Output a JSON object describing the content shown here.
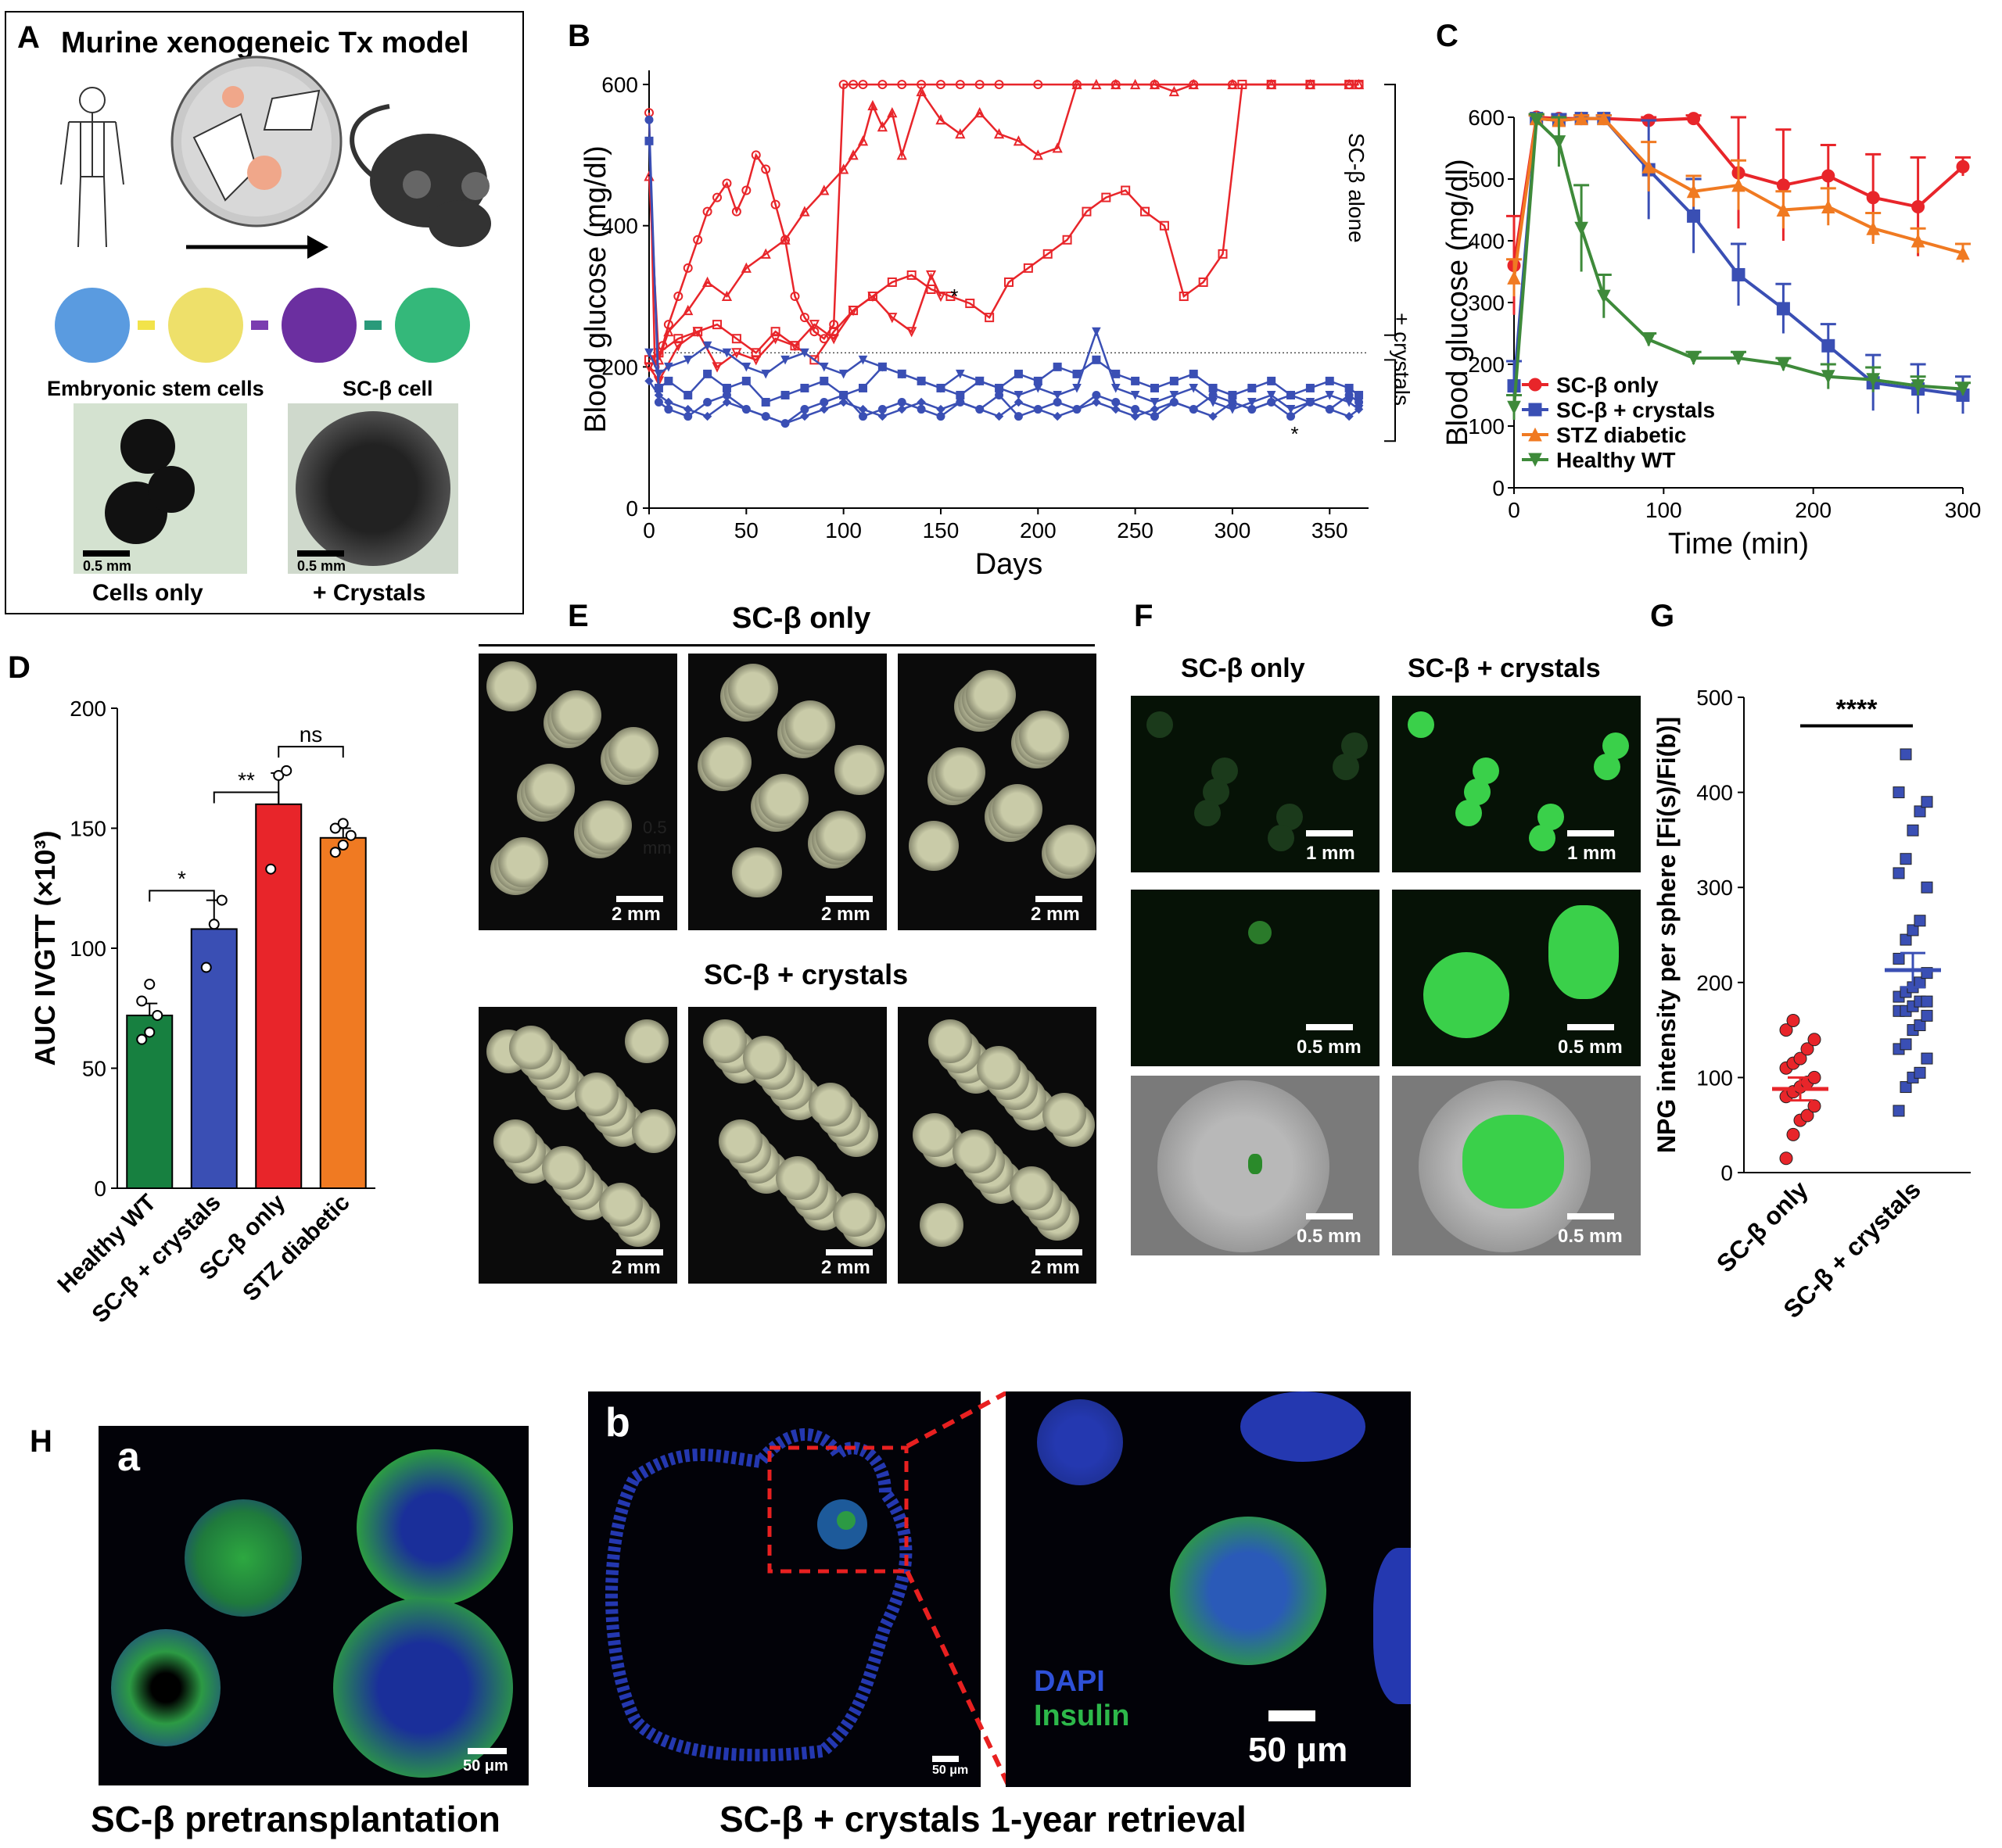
{
  "panels": {
    "A": {
      "letter": "A",
      "title": "Murine xenogeneic Tx model",
      "labels": {
        "stem": "Embryonic stem cells",
        "beta": "SC-β cell",
        "scale1": "0.5 mm",
        "scale2": "0.5 mm",
        "cells_only": "Cells only",
        "crystals": "+ Crystals"
      }
    },
    "B": {
      "letter": "B",
      "bracket_top": "SC-β alone",
      "bracket_bottom": "+ crystals",
      "asterisk": "*"
    },
    "C": {
      "letter": "C"
    },
    "D": {
      "letter": "D"
    },
    "E": {
      "letter": "E",
      "title_top": "SC-β only",
      "title_bottom": "SC-β + crystals",
      "scale": "2 mm",
      "overlay_text": "0.5 mm"
    },
    "F": {
      "letter": "F",
      "col1": "SC-β only",
      "col2": "SC-β + crystals",
      "scale_1mm": "1 mm",
      "scale_05mm": "0.5 mm"
    },
    "G": {
      "letter": "G",
      "sig": "****"
    },
    "H": {
      "letter": "H",
      "sub_a": "a",
      "sub_b": "b",
      "caption_a": "SC-β pretransplantation",
      "caption_b": "SC-β + crystals 1-year retrieval",
      "scale_small": "50 μm",
      "scale_big": "50 μm",
      "dapi": "DAPI",
      "insulin": "Insulin"
    }
  },
  "colors": {
    "red": "#e8252a",
    "blue": "#3a4fb4",
    "orange": "#f07a22",
    "green": "#3e8a3a",
    "dgreen": "#178040"
  },
  "chart_data": [
    {
      "panel": "B",
      "type": "line",
      "xlabel": "Days",
      "ylabel": "Blood glucose (mg/dl)",
      "xlim": [
        0,
        370
      ],
      "ylim": [
        0,
        620
      ],
      "xticks": [
        0,
        50,
        100,
        150,
        200,
        250,
        300,
        350
      ],
      "yticks": [
        0,
        200,
        400,
        600
      ],
      "threshold": 220,
      "series": [
        {
          "group": "red",
          "marker": "circle",
          "x": [
            0,
            3,
            7,
            10,
            15,
            20,
            25,
            30,
            35,
            40,
            45,
            50,
            55,
            60,
            65,
            70,
            75,
            80,
            85,
            90,
            95,
            100,
            105,
            110,
            120,
            130,
            140,
            150,
            160,
            170,
            180,
            200,
            220,
            240,
            260,
            280,
            300,
            320,
            340,
            360,
            365
          ],
          "y": [
            560,
            200,
            230,
            260,
            300,
            340,
            380,
            420,
            440,
            460,
            420,
            450,
            500,
            480,
            430,
            380,
            300,
            270,
            250,
            240,
            260,
            600,
            600,
            600,
            600,
            600,
            600,
            600,
            600,
            600,
            600,
            600,
            600,
            600,
            600,
            600,
            600,
            600,
            600,
            600,
            600
          ]
        },
        {
          "group": "red",
          "marker": "triangle",
          "x": [
            0,
            5,
            10,
            20,
            30,
            40,
            50,
            60,
            70,
            80,
            90,
            100,
            105,
            110,
            115,
            120,
            125,
            130,
            140,
            150,
            160,
            170,
            180,
            190,
            200,
            210,
            220,
            230,
            240,
            250,
            260,
            270,
            280,
            300,
            320,
            340,
            360,
            365
          ],
          "y": [
            470,
            210,
            250,
            280,
            320,
            300,
            340,
            360,
            380,
            420,
            450,
            480,
            500,
            520,
            570,
            540,
            560,
            500,
            590,
            550,
            530,
            560,
            530,
            520,
            500,
            510,
            600,
            600,
            600,
            600,
            600,
            590,
            600,
            600,
            600,
            600,
            600,
            600
          ]
        },
        {
          "group": "red",
          "marker": "square",
          "x": [
            0,
            5,
            15,
            25,
            35,
            45,
            55,
            65,
            75,
            85,
            95,
            105,
            115,
            125,
            135,
            145,
            155,
            165,
            175,
            185,
            195,
            205,
            215,
            225,
            235,
            245,
            255,
            265,
            275,
            285,
            295,
            305,
            320,
            340,
            360,
            365
          ],
          "y": [
            210,
            220,
            240,
            250,
            260,
            240,
            220,
            250,
            230,
            210,
            250,
            280,
            300,
            320,
            330,
            310,
            300,
            290,
            270,
            320,
            340,
            360,
            380,
            420,
            440,
            450,
            420,
            400,
            300,
            320,
            360,
            600,
            600,
            600,
            600,
            600
          ]
        },
        {
          "group": "red",
          "marker": "invtriangle",
          "x": [
            0,
            5,
            15,
            25,
            35,
            45,
            55,
            65,
            75,
            85,
            95,
            105,
            115,
            125,
            135,
            145,
            150
          ],
          "y": [
            200,
            180,
            230,
            250,
            200,
            220,
            210,
            240,
            230,
            260,
            240,
            280,
            300,
            270,
            250,
            330,
            300
          ]
        },
        {
          "group": "blue",
          "marker": "circle",
          "x": [
            0,
            5,
            10,
            20,
            30,
            40,
            50,
            60,
            70,
            80,
            90,
            100,
            110,
            120,
            130,
            140,
            150,
            160,
            170,
            180,
            190,
            200,
            210,
            220,
            230,
            240,
            250,
            260,
            270,
            280,
            290,
            300,
            310,
            320,
            330,
            340,
            350,
            360,
            365
          ],
          "y": [
            550,
            150,
            140,
            130,
            150,
            160,
            140,
            130,
            120,
            140,
            150,
            160,
            130,
            140,
            150,
            140,
            130,
            150,
            140,
            160,
            130,
            140,
            150,
            140,
            160,
            150,
            140,
            130,
            150,
            140,
            160,
            150,
            140,
            150,
            130,
            150,
            140,
            160,
            150
          ]
        },
        {
          "group": "blue",
          "marker": "square",
          "x": [
            0,
            5,
            10,
            20,
            30,
            40,
            50,
            60,
            70,
            80,
            90,
            100,
            110,
            120,
            130,
            140,
            150,
            160,
            170,
            180,
            190,
            200,
            210,
            220,
            230,
            240,
            250,
            260,
            270,
            280,
            290,
            300,
            310,
            320,
            330,
            340,
            350,
            360,
            365
          ],
          "y": [
            520,
            170,
            180,
            160,
            190,
            170,
            180,
            150,
            160,
            170,
            180,
            160,
            170,
            200,
            190,
            180,
            170,
            160,
            180,
            170,
            190,
            180,
            200,
            190,
            210,
            190,
            180,
            170,
            180,
            190,
            170,
            160,
            170,
            180,
            160,
            170,
            180,
            170,
            160
          ]
        },
        {
          "group": "blue",
          "marker": "invtriangle",
          "x": [
            0,
            5,
            10,
            20,
            30,
            40,
            50,
            60,
            70,
            80,
            90,
            100,
            110,
            120,
            130,
            140,
            150,
            160,
            170,
            180,
            190,
            200,
            210,
            220,
            230,
            240,
            250,
            260,
            270,
            280,
            290,
            300,
            310,
            320,
            330,
            340,
            350,
            360,
            365
          ],
          "y": [
            220,
            190,
            200,
            210,
            230,
            220,
            200,
            190,
            210,
            220,
            200,
            190,
            210,
            200,
            190,
            180,
            170,
            190,
            180,
            170,
            160,
            170,
            160,
            170,
            250,
            170,
            160,
            150,
            160,
            170,
            150,
            140,
            150,
            160,
            140,
            150,
            160,
            150,
            140
          ]
        },
        {
          "group": "blue",
          "marker": "diamond",
          "x": [
            0,
            5,
            10,
            20,
            30,
            40,
            50,
            60,
            70,
            80,
            90,
            100,
            110,
            120,
            130,
            140,
            150,
            160,
            170,
            180,
            190,
            200,
            210,
            220,
            230,
            240,
            250,
            260,
            270,
            280,
            290,
            300,
            310,
            320,
            330,
            340,
            350,
            360,
            365
          ],
          "y": [
            180,
            160,
            150,
            140,
            130,
            150,
            140,
            130,
            120,
            130,
            140,
            150,
            140,
            130,
            140,
            150,
            140,
            150,
            140,
            130,
            150,
            140,
            130,
            140,
            150,
            140,
            130,
            140,
            150,
            140,
            130,
            150,
            140,
            150,
            160,
            150,
            140,
            130,
            140
          ]
        }
      ]
    },
    {
      "panel": "C",
      "type": "line",
      "xlabel": "Time (min)",
      "ylabel": "Blood glucose (mg/dl)",
      "xlim": [
        0,
        300
      ],
      "ylim": [
        0,
        600
      ],
      "xticks": [
        0,
        100,
        200,
        300
      ],
      "yticks": [
        0,
        100,
        200,
        300,
        400,
        500,
        600
      ],
      "x": [
        0,
        15,
        30,
        45,
        60,
        90,
        120,
        150,
        180,
        210,
        240,
        270,
        300
      ],
      "series": [
        {
          "name": "SC-β only",
          "marker": "circle",
          "y": [
            360,
            600,
            598,
            598,
            598,
            595,
            598,
            510,
            490,
            505,
            470,
            455,
            520
          ],
          "err": [
            80,
            5,
            5,
            5,
            5,
            5,
            5,
            90,
            90,
            50,
            70,
            80,
            15
          ]
        },
        {
          "name": "SC-β + crystals",
          "marker": "square",
          "y": [
            165,
            598,
            595,
            598,
            598,
            515,
            440,
            345,
            290,
            230,
            170,
            160,
            150
          ],
          "err": [
            40,
            5,
            10,
            5,
            5,
            80,
            60,
            50,
            40,
            35,
            45,
            40,
            30
          ]
        },
        {
          "name": "STZ diabetic",
          "marker": "triangle",
          "y": [
            340,
            598,
            595,
            598,
            598,
            520,
            480,
            490,
            450,
            455,
            420,
            400,
            380
          ],
          "err": [
            30,
            5,
            5,
            5,
            5,
            40,
            25,
            40,
            30,
            30,
            25,
            20,
            15
          ]
        },
        {
          "name": "Healthy WT",
          "marker": "invtriangle",
          "y": [
            130,
            595,
            560,
            420,
            310,
            240,
            210,
            210,
            200,
            180,
            175,
            165,
            160
          ],
          "err": [
            20,
            10,
            40,
            70,
            35,
            10,
            10,
            10,
            10,
            20,
            20,
            15,
            10
          ]
        }
      ]
    },
    {
      "panel": "D",
      "type": "bar",
      "ylabel": "AUC IVGTT (×10³)",
      "ylim": [
        0,
        200
      ],
      "yticks": [
        0,
        50,
        100,
        150,
        200
      ],
      "categories": [
        "Healthy WT",
        "SC-β + crystals",
        "SC-β only",
        "STZ diabetic"
      ],
      "values": [
        72,
        108,
        160,
        146
      ],
      "errors": [
        5,
        12,
        13,
        4
      ],
      "points": [
        [
          62,
          65,
          72,
          78,
          85
        ],
        [
          92,
          110,
          120
        ],
        [
          133,
          172,
          174
        ],
        [
          140,
          143,
          147,
          150,
          152
        ]
      ],
      "significance": [
        {
          "a": 0,
          "b": 1,
          "label": "*"
        },
        {
          "a": 1,
          "b": 2,
          "label": "**"
        },
        {
          "a": 2,
          "b": 3,
          "label": "ns"
        }
      ]
    },
    {
      "panel": "G",
      "type": "scatter",
      "ylabel": "NPG intensity per sphere [Fi(s)/Fi(b)]",
      "ylim": [
        0,
        500
      ],
      "yticks": [
        0,
        100,
        200,
        300,
        400,
        500
      ],
      "categories": [
        "SC-β only",
        "SC-β + crystals"
      ],
      "means": [
        88,
        213
      ],
      "sem": [
        12,
        18
      ],
      "points": [
        [
          15,
          40,
          55,
          60,
          70,
          80,
          85,
          90,
          95,
          100,
          110,
          115,
          120,
          130,
          140,
          150,
          160
        ],
        [
          65,
          90,
          100,
          105,
          120,
          130,
          135,
          150,
          155,
          165,
          170,
          170,
          175,
          180,
          180,
          185,
          190,
          195,
          200,
          210,
          225,
          245,
          255,
          265,
          300,
          315,
          330,
          360,
          380,
          390,
          400,
          440
        ]
      ]
    }
  ]
}
